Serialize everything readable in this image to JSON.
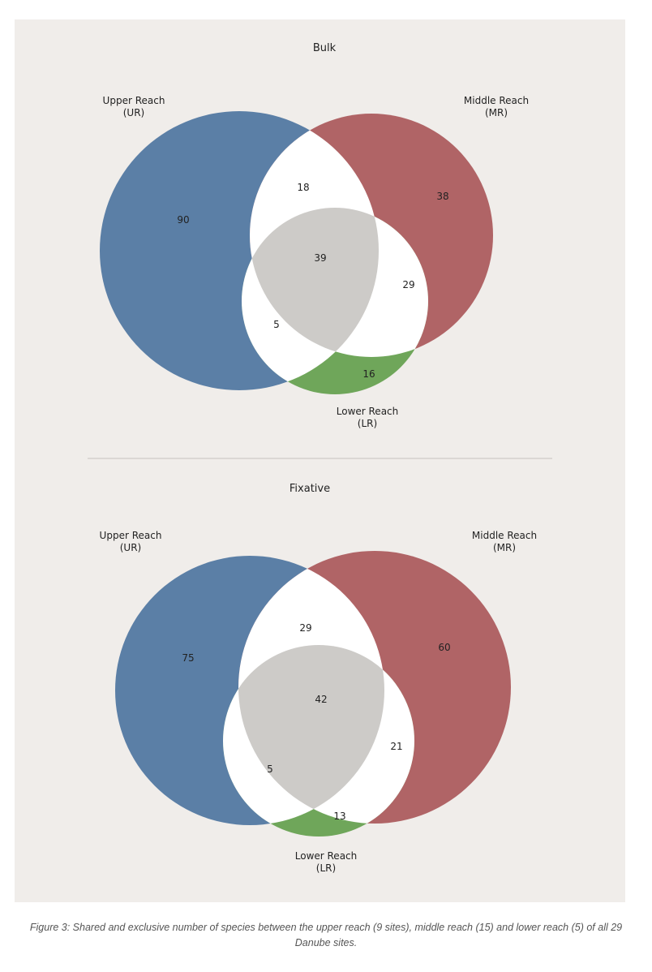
{
  "chart_data": [
    {
      "type": "venn",
      "title": "Bulk",
      "sets": [
        {
          "label": "Upper Reach",
          "abbr": "(UR)",
          "color": "#5b7fa6"
        },
        {
          "label": "Middle Reach",
          "abbr": "(MR)",
          "color": "#b06466"
        },
        {
          "label": "Lower Reach",
          "abbr": "(LR)",
          "color": "#6fa65a"
        }
      ],
      "regions": {
        "ur_only": "90",
        "mr_only": "38",
        "lr_only": "16",
        "ur_mr": "18",
        "mr_lr": "29",
        "ur_lr": "5",
        "all": "39"
      },
      "center_color": "#cdcbc8"
    },
    {
      "type": "venn",
      "title": "Fixative",
      "sets": [
        {
          "label": "Upper Reach",
          "abbr": "(UR)",
          "color": "#5b7fa6"
        },
        {
          "label": "Middle Reach",
          "abbr": "(MR)",
          "color": "#b06466"
        },
        {
          "label": "Lower Reach",
          "abbr": "(LR)",
          "color": "#6fa65a"
        }
      ],
      "regions": {
        "ur_only": "75",
        "mr_only": "60",
        "lr_only": "13",
        "ur_mr": "29",
        "mr_lr": "21",
        "ur_lr": "5",
        "all": "42"
      },
      "center_color": "#cdcbc8"
    }
  ],
  "caption": "Figure 3: Shared and exclusive number of species between the upper reach (9 sites), middle reach (15) and lower reach (5) of all 29 Danube sites."
}
